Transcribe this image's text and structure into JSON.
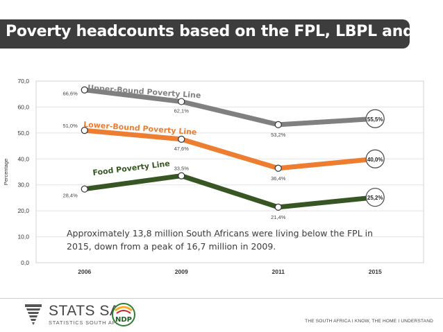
{
  "header": {
    "title": "Poverty headcounts based on the FPL, LBPL and UBPL"
  },
  "chart_data": {
    "type": "line",
    "categories": [
      "2006",
      "2009",
      "2011",
      "2015"
    ],
    "ylabel": "Percentage",
    "ylim": [
      0,
      70
    ],
    "yticks": [
      "0,0",
      "10,0",
      "20,0",
      "30,0",
      "40,0",
      "50,0",
      "60,0",
      "70,0"
    ],
    "grid": true,
    "series": [
      {
        "name": "Upper-Bound Poverty Line",
        "color": "#808080",
        "values": [
          66.6,
          62.1,
          53.2,
          55.5
        ],
        "labels": [
          "66,6%",
          "62,1%",
          "53,2%",
          "55,5%"
        ]
      },
      {
        "name": "Lower-Bound Poverty Line",
        "color": "#ed7d31",
        "values": [
          51.0,
          47.6,
          36.4,
          40.0
        ],
        "labels": [
          "51,0%",
          "47,6%",
          "36,4%",
          "40,0%"
        ]
      },
      {
        "name": "Food Poverty Line",
        "color": "#375623",
        "values": [
          28.4,
          33.5,
          21.4,
          25.2
        ],
        "labels": [
          "28,4%",
          "33,5%",
          "21,4%",
          "25,2%"
        ]
      }
    ],
    "annotation": "Approximately 13,8 million South Africans were living below the FPL in 2015, down from a peak of 16,7 million in 2009."
  },
  "footer": {
    "logo_name": "STATS SA",
    "logo_sub": "STATISTICS SOUTH AFRICA",
    "ndp_label": "NDP",
    "tagline": "THE SOUTH AFRICA I KNOW, THE HOME I UNDERSTAND"
  },
  "colors": {
    "title_bg": "#3d3d3d",
    "title_text": "#ffffff"
  }
}
